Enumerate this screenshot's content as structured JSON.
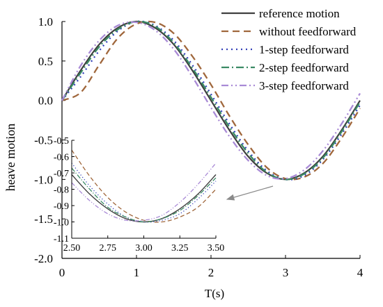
{
  "chart_data": [
    {
      "type": "line",
      "xlabel": "T(s)",
      "ylabel": "heave motion",
      "xlim": [
        0,
        4
      ],
      "ylim": [
        -2.0,
        1.0
      ],
      "x_ticks": [
        "0",
        "1",
        "2",
        "3",
        "4"
      ],
      "y_ticks": [
        "1.0",
        "0.5",
        "0.0",
        "-0.5",
        "-1.0",
        "-1.5",
        "-2.0"
      ],
      "legend_position": "top-right",
      "x": [
        0,
        0.25,
        0.5,
        0.75,
        1.0,
        1.25,
        1.5,
        1.75,
        2.0,
        2.25,
        2.5,
        2.75,
        3.0,
        3.25,
        3.5,
        3.75,
        4.0
      ],
      "series": [
        {
          "name": "reference motion",
          "color": "#3f3f3f",
          "dash": "solid",
          "values": [
            0.0,
            0.38,
            0.71,
            0.92,
            1.0,
            0.92,
            0.71,
            0.38,
            0.0,
            -0.38,
            -0.71,
            -0.92,
            -1.0,
            -0.92,
            -0.71,
            -0.38,
            0.0
          ]
        },
        {
          "name": "without feedforward",
          "color": "#a0673c",
          "dash": "dash",
          "values": [
            0.0,
            0.1,
            0.45,
            0.79,
            0.97,
            0.99,
            0.85,
            0.56,
            0.2,
            -0.2,
            -0.56,
            -0.85,
            -0.99,
            -0.97,
            -0.8,
            -0.48,
            -0.1
          ]
        },
        {
          "name": "1-step feedforward",
          "color": "#3340b8",
          "dash": "dot",
          "values": [
            0.0,
            0.3,
            0.63,
            0.88,
            1.0,
            0.95,
            0.76,
            0.45,
            0.08,
            -0.3,
            -0.64,
            -0.89,
            -1.0,
            -0.95,
            -0.75,
            -0.43,
            -0.06
          ]
        },
        {
          "name": "2-step feedforward",
          "color": "#3a8a64",
          "dash": "dashdot",
          "values": [
            0.0,
            0.35,
            0.68,
            0.9,
            1.0,
            0.94,
            0.73,
            0.41,
            0.04,
            -0.34,
            -0.67,
            -0.91,
            -1.0,
            -0.93,
            -0.73,
            -0.4,
            -0.02
          ]
        },
        {
          "name": "3-step feedforward",
          "color": "#a98ad6",
          "dash": "dashdotdot",
          "values": [
            0.0,
            0.44,
            0.76,
            0.95,
            0.99,
            0.89,
            0.65,
            0.3,
            -0.09,
            -0.46,
            -0.76,
            -0.95,
            -0.99,
            -0.88,
            -0.64,
            -0.3,
            0.09
          ]
        }
      ]
    },
    {
      "type": "line",
      "placement": "inset",
      "xlim": [
        2.5,
        3.5
      ],
      "ylim": [
        -1.1,
        -0.5
      ],
      "x_ticks": [
        "2.50",
        "2.75",
        "3.00",
        "3.25",
        "3.50"
      ],
      "y_ticks": [
        "-0.5",
        "-0.6",
        "-0.7",
        "-0.8",
        "-0.9",
        "-1.0",
        "-1.1"
      ],
      "x": [
        2.5,
        2.625,
        2.75,
        2.875,
        3.0,
        3.125,
        3.25,
        3.375,
        3.5
      ],
      "series": [
        {
          "color": "#3f3f3f",
          "dash": "solid",
          "values": [
            -0.71,
            -0.83,
            -0.92,
            -0.98,
            -1.0,
            -0.98,
            -0.92,
            -0.83,
            -0.71
          ]
        },
        {
          "color": "#a0673c",
          "dash": "dash",
          "values": [
            -0.56,
            -0.72,
            -0.85,
            -0.94,
            -0.99,
            -1.0,
            -0.97,
            -0.91,
            -0.8
          ]
        },
        {
          "color": "#3340b8",
          "dash": "dot",
          "values": [
            -0.64,
            -0.78,
            -0.89,
            -0.97,
            -1.0,
            -0.99,
            -0.95,
            -0.86,
            -0.75
          ]
        },
        {
          "color": "#3a8a64",
          "dash": "dashdot",
          "values": [
            -0.67,
            -0.8,
            -0.91,
            -0.97,
            -1.0,
            -0.98,
            -0.93,
            -0.84,
            -0.73
          ]
        },
        {
          "color": "#a98ad6",
          "dash": "dashdotdot",
          "values": [
            -0.76,
            -0.87,
            -0.95,
            -0.99,
            -0.99,
            -0.96,
            -0.88,
            -0.77,
            -0.64
          ]
        }
      ]
    }
  ]
}
